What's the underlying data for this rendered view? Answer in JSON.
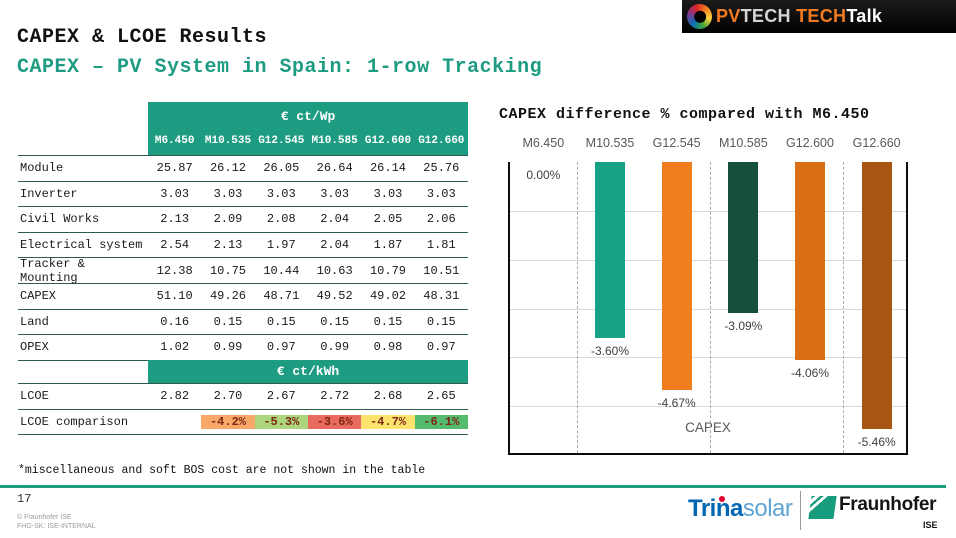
{
  "slide": {
    "title": "CAPEX & LCOE Results",
    "subtitle": "CAPEX – PV System in Spain: 1-row Tracking",
    "footnote": "*miscellaneous and soft BOS cost are not shown in the table",
    "page_number": "17",
    "copyright": "© Fraunhofer ISE",
    "internal_label": "FHG-SK: ISE-INTERNAL"
  },
  "banner": {
    "pv": "PV",
    "tech": "TECH",
    "tech2": "TECH",
    "talk": "Talk"
  },
  "logos": {
    "trina_bold": "Trina",
    "trina_light": "solar",
    "fraunhofer_name": "Fraunhofer",
    "fraunhofer_sub": "ISE"
  },
  "table": {
    "unit_header_wp": "€ ct/Wp",
    "unit_header_kwh": "€ ct/kWh",
    "columns": [
      "M6.450",
      "M10.535",
      "G12.545",
      "M10.585",
      "G12.600",
      "G12.660"
    ],
    "rows": [
      {
        "label": "Module",
        "values": [
          "25.87",
          "26.12",
          "26.05",
          "26.64",
          "26.14",
          "25.76"
        ]
      },
      {
        "label": "Inverter",
        "values": [
          "3.03",
          "3.03",
          "3.03",
          "3.03",
          "3.03",
          "3.03"
        ]
      },
      {
        "label": "Civil Works",
        "values": [
          "2.13",
          "2.09",
          "2.08",
          "2.04",
          "2.05",
          "2.06"
        ]
      },
      {
        "label": "Electrical system",
        "values": [
          "2.54",
          "2.13",
          "1.97",
          "2.04",
          "1.87",
          "1.81"
        ]
      },
      {
        "label": "Tracker & Mounting",
        "values": [
          "12.38",
          "10.75",
          "10.44",
          "10.63",
          "10.79",
          "10.51"
        ]
      },
      {
        "label": "CAPEX",
        "values": [
          "51.10",
          "49.26",
          "48.71",
          "49.52",
          "49.02",
          "48.31"
        ]
      },
      {
        "label": "Land",
        "values": [
          "0.16",
          "0.15",
          "0.15",
          "0.15",
          "0.15",
          "0.15"
        ]
      },
      {
        "label": "OPEX",
        "values": [
          "1.02",
          "0.99",
          "0.97",
          "0.99",
          "0.98",
          "0.97"
        ]
      }
    ],
    "lcoe_row": {
      "label": "LCOE",
      "values": [
        "2.82",
        "2.70",
        "2.67",
        "2.72",
        "2.68",
        "2.65"
      ]
    },
    "lcoe_comparison": {
      "label": "LCOE comparison",
      "values": [
        "",
        "-4.2%",
        "-5.3%",
        "-3.6%",
        "-4.7%",
        "-6.1%"
      ],
      "cell_colors": [
        "",
        "#F8A869",
        "#ADD57E",
        "#E96A5E",
        "#FBE36E",
        "#55BB6E"
      ]
    }
  },
  "chart_data": {
    "type": "bar",
    "title": "CAPEX difference % compared with M6.450",
    "categories": [
      "M6.450",
      "M10.535",
      "G12.545",
      "M10.585",
      "G12.600",
      "G12.660"
    ],
    "values": [
      0,
      -3.6,
      -4.67,
      -3.09,
      -4.06,
      -5.46
    ],
    "data_labels": [
      "0.00%",
      "-3.60%",
      "-4.67%",
      "-3.09%",
      "-4.06%",
      "-5.46%"
    ],
    "bar_colors": [
      "none",
      "#17A186",
      "#F07D1E",
      "#15503F",
      "#DA6E15",
      "#A85511"
    ],
    "xlabel": "CAPEX",
    "ylabel": "",
    "ylim": [
      -6,
      0
    ],
    "gridline_step_pct": 1,
    "grid": true,
    "legend": "none"
  },
  "colors": {
    "accent_teal": "#1E9C82",
    "table_line": "#2F5B4C",
    "gridline": "#D9D9D9",
    "axis_label_gray": "#595959",
    "comparison_text": "#7E2715",
    "trina_blue": "#0067B2",
    "trina_red": "#E4002B",
    "fraunhofer_green": "#179C7D",
    "banner_orange": "#F47B20"
  }
}
